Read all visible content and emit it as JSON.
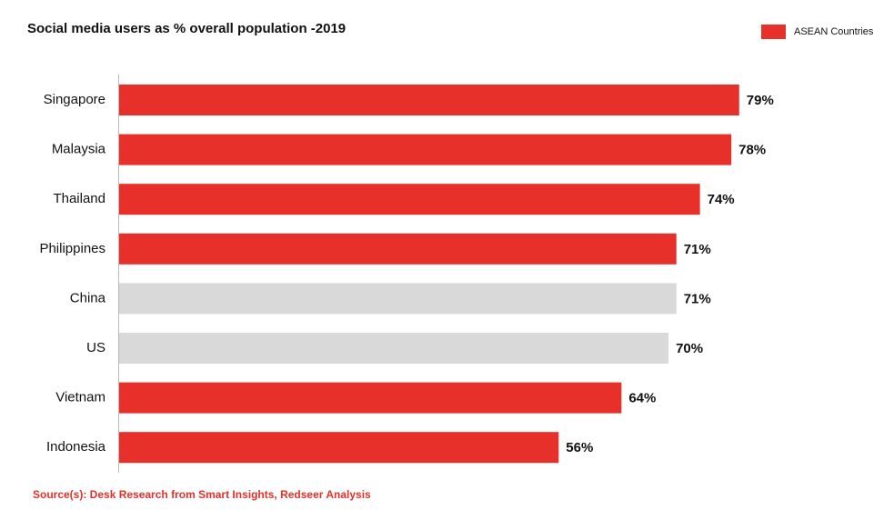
{
  "chart_data": {
    "type": "bar",
    "orientation": "horizontal",
    "title": "Social media users as % overall population -2019",
    "categories": [
      "Singapore",
      "Malaysia",
      "Thailand",
      "Philippines",
      "China",
      "US",
      "Vietnam",
      "Indonesia"
    ],
    "values": [
      79,
      78,
      74,
      71,
      71,
      70,
      64,
      56
    ],
    "value_labels": [
      "79%",
      "78%",
      "74%",
      "71%",
      "71%",
      "70%",
      "64%",
      "56%"
    ],
    "colors": [
      "#e8302a",
      "#e8302a",
      "#e8302a",
      "#e8302a",
      "#d9d9d9",
      "#d9d9d9",
      "#e8302a",
      "#e8302a"
    ],
    "legend": {
      "label": "ASEAN Countries",
      "color": "#e8302a",
      "position": "top-right"
    },
    "source": "Source(s): Desk Research from Smart Insights, Redseer Analysis"
  }
}
